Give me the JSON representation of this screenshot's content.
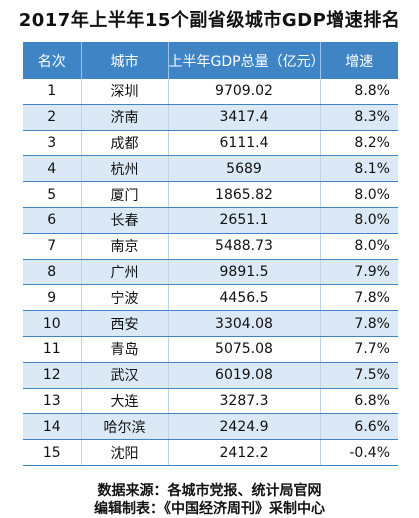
{
  "title": "2017年上半年15个副省级城市GDP增速排名",
  "columns": [
    "名次",
    "城市",
    "上半年GDP总量（亿元）",
    "增速"
  ],
  "rows": [
    {
      "rank": "1",
      "city": "深圳",
      "gdp": "9709.02",
      "growth": "8.8%"
    },
    {
      "rank": "2",
      "city": "济南",
      "gdp": "3417.4",
      "growth": "8.3%"
    },
    {
      "rank": "3",
      "city": "成都",
      "gdp": "6111.4",
      "growth": "8.2%"
    },
    {
      "rank": "4",
      "city": "杭州",
      "gdp": "5689",
      "growth": "8.1%"
    },
    {
      "rank": "5",
      "city": "厦门",
      "gdp": "1865.82",
      "growth": "8.0%"
    },
    {
      "rank": "6",
      "city": "长春",
      "gdp": "2651.1",
      "growth": "8.0%"
    },
    {
      "rank": "7",
      "city": "南京",
      "gdp": "5488.73",
      "growth": "8.0%"
    },
    {
      "rank": "8",
      "city": "广州",
      "gdp": "9891.5",
      "growth": "7.9%"
    },
    {
      "rank": "9",
      "city": "宁波",
      "gdp": "4456.5",
      "growth": "7.8%"
    },
    {
      "rank": "10",
      "city": "西安",
      "gdp": "3304.08",
      "growth": "7.8%"
    },
    {
      "rank": "11",
      "city": "青岛",
      "gdp": "5075.08",
      "growth": "7.7%"
    },
    {
      "rank": "12",
      "city": "武汉",
      "gdp": "6019.08",
      "growth": "7.5%"
    },
    {
      "rank": "13",
      "city": "大连",
      "gdp": "3287.3",
      "growth": "6.8%"
    },
    {
      "rank": "14",
      "city": "哈尔滨",
      "gdp": "2424.9",
      "growth": "6.6%"
    },
    {
      "rank": "15",
      "city": "沈阳",
      "gdp": "2412.2",
      "growth": "-0.4%"
    }
  ],
  "footer": {
    "source": "数据来源：各城市党报、统计局官网",
    "editor": "编辑制表：《中国经济周刊》采制中心"
  },
  "colors": {
    "header_bg": "#3f84c4",
    "alt_row_bg": "#dbe9f6"
  }
}
